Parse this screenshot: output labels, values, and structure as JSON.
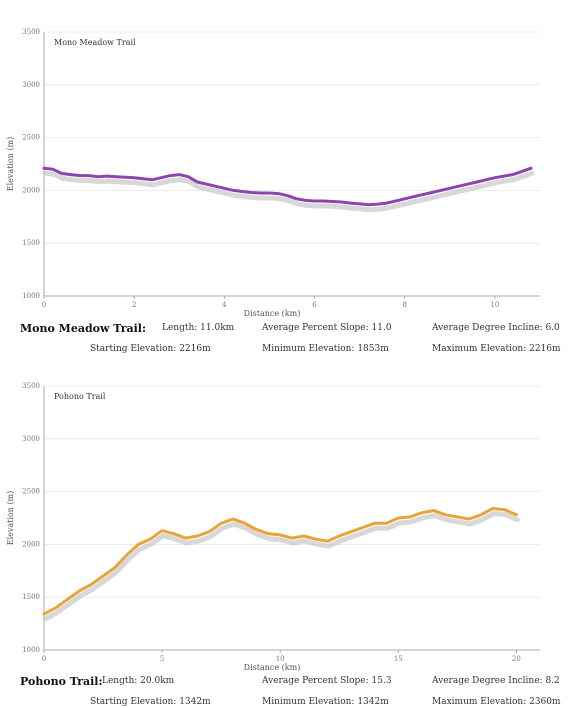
{
  "chart_data": [
    {
      "type": "line",
      "title": "Mono Meadow Trail",
      "xlabel": "Distance (km)",
      "ylabel": "Elevation (m)",
      "xlim": [
        0,
        11.0
      ],
      "ylim": [
        1000,
        3500
      ],
      "xticks": [
        0,
        2,
        4,
        6,
        8,
        10
      ],
      "yticks": [
        1000,
        1500,
        2000,
        2500,
        3000,
        3500
      ],
      "color": "#8e44ad",
      "grid": true,
      "series": [
        {
          "x": [
            0,
            0.2,
            0.4,
            0.6,
            0.8,
            1.0,
            1.2,
            1.4,
            1.6,
            1.8,
            2.0,
            2.2,
            2.4,
            2.6,
            2.8,
            3.0,
            3.2,
            3.4,
            3.6,
            3.8,
            4.0,
            4.2,
            4.4,
            4.6,
            4.8,
            5.0,
            5.2,
            5.4,
            5.6,
            5.8,
            6.0,
            6.2,
            6.4,
            6.6,
            6.8,
            7.0,
            7.2,
            7.4,
            7.6,
            7.8,
            8.0,
            8.2,
            8.4,
            8.6,
            8.8,
            9.0,
            9.2,
            9.4,
            9.6,
            9.8,
            10.0,
            10.2,
            10.4,
            10.6,
            10.8
          ],
          "y": [
            2210,
            2200,
            2160,
            2150,
            2140,
            2140,
            2130,
            2135,
            2130,
            2125,
            2120,
            2110,
            2100,
            2120,
            2140,
            2150,
            2130,
            2080,
            2060,
            2040,
            2020,
            2000,
            1990,
            1980,
            1975,
            1975,
            1970,
            1950,
            1920,
            1905,
            1900,
            1900,
            1895,
            1890,
            1880,
            1872,
            1865,
            1870,
            1880,
            1900,
            1920,
            1940,
            1960,
            1980,
            2000,
            2020,
            2040,
            2060,
            2080,
            2100,
            2120,
            2135,
            2150,
            2180,
            2210
          ]
        }
      ]
    },
    {
      "type": "line",
      "title": "Pohono Trail",
      "xlabel": "Distance (km)",
      "ylabel": "Elevation (m)",
      "xlim": [
        0,
        21.0
      ],
      "ylim": [
        1000,
        3500
      ],
      "xticks": [
        0,
        5,
        10,
        15,
        20
      ],
      "yticks": [
        1000,
        1500,
        2000,
        2500,
        3000,
        3500
      ],
      "color": "#e8a33c",
      "grid": true,
      "series": [
        {
          "x": [
            0,
            0.5,
            1.0,
            1.5,
            2.0,
            2.5,
            3.0,
            3.5,
            4.0,
            4.5,
            5.0,
            5.5,
            6.0,
            6.5,
            7.0,
            7.5,
            8.0,
            8.5,
            9.0,
            9.5,
            10.0,
            10.5,
            11.0,
            11.5,
            12.0,
            12.5,
            13.0,
            13.5,
            14.0,
            14.5,
            15.0,
            15.5,
            16.0,
            16.5,
            17.0,
            17.5,
            18.0,
            18.5,
            19.0,
            19.5,
            20.0
          ],
          "y": [
            1342,
            1400,
            1480,
            1560,
            1620,
            1700,
            1780,
            1900,
            2000,
            2050,
            2130,
            2100,
            2060,
            2080,
            2120,
            2200,
            2240,
            2200,
            2140,
            2100,
            2090,
            2060,
            2080,
            2050,
            2030,
            2080,
            2120,
            2160,
            2200,
            2200,
            2250,
            2260,
            2300,
            2320,
            2280,
            2260,
            2240,
            2280,
            2340,
            2330,
            2280
          ]
        }
      ]
    }
  ],
  "stats": [
    {
      "trail": "Mono Meadow Trail:",
      "length": "Length: 11.0km",
      "slope": "Average Percent Slope: 11.0",
      "incline": "Average Degree Incline: 6.0",
      "start": "Starting Elevation: 2216m",
      "min": "Minimum Elevation: 1853m",
      "max": "Maximum Elevation: 2216m"
    },
    {
      "trail": "Pohono Trail:",
      "length": "Length: 20.0km",
      "slope": "Average Percent Slope: 15.3",
      "incline": "Average Degree Incline: 8.2",
      "start": "Starting Elevation: 1342m",
      "min": "Minimum Elevation: 1342m",
      "max": "Maximum Elevation: 2360m"
    }
  ]
}
